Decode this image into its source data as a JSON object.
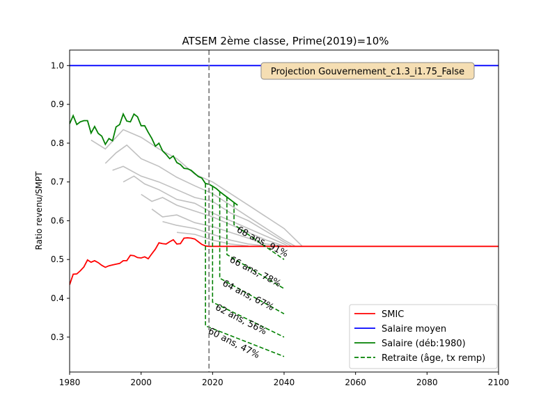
{
  "chart_data": {
    "type": "line",
    "title": "ATSEM 2ème classe, Prime(2019)=10%",
    "xlabel": "",
    "ylabel": "Ratio revenu/SMPT",
    "xlim": [
      1980,
      2100
    ],
    "ylim": [
      0.21,
      1.04
    ],
    "xticks": [
      1980,
      2000,
      2020,
      2040,
      2060,
      2080,
      2100
    ],
    "yticks": [
      0.3,
      0.4,
      0.5,
      0.6,
      0.7,
      0.8,
      0.9,
      1.0
    ],
    "grid": false,
    "legend_position": "bottom-right",
    "annotation_box": "Projection Gouvernement_c1.3_i1.75_False",
    "vline": {
      "x": 2019,
      "color": "#808080",
      "style": "dashed"
    },
    "series": [
      {
        "name": "SMIC",
        "color": "#ff0000",
        "style": "solid",
        "x": [
          1980,
          1981,
          1982,
          1983,
          1984,
          1985,
          1986,
          1987,
          1988,
          1989,
          1990,
          1991,
          1992,
          1993,
          1994,
          1995,
          1996,
          1997,
          1998,
          1999,
          2000,
          2001,
          2002,
          2003,
          2004,
          2005,
          2006,
          2007,
          2008,
          2009,
          2010,
          2011,
          2012,
          2013,
          2014,
          2015,
          2016,
          2017,
          2018,
          2019,
          2020,
          2030,
          2040,
          2060,
          2080,
          2100
        ],
        "y": [
          0.435,
          0.462,
          0.463,
          0.471,
          0.481,
          0.499,
          0.493,
          0.497,
          0.492,
          0.485,
          0.48,
          0.484,
          0.486,
          0.488,
          0.49,
          0.497,
          0.497,
          0.511,
          0.51,
          0.505,
          0.504,
          0.507,
          0.502,
          0.515,
          0.527,
          0.543,
          0.541,
          0.54,
          0.546,
          0.551,
          0.54,
          0.541,
          0.555,
          0.556,
          0.555,
          0.553,
          0.546,
          0.539,
          0.535,
          0.534,
          0.534,
          0.534,
          0.534,
          0.534,
          0.534,
          0.534
        ]
      },
      {
        "name": "Salaire moyen",
        "color": "#0000ff",
        "style": "solid",
        "x": [
          1980,
          2100
        ],
        "y": [
          1.0,
          1.0
        ]
      },
      {
        "name": "Salaire (déb:1980)",
        "color": "#008000",
        "style": "solid",
        "x": [
          1980,
          1981,
          1982,
          1983,
          1984,
          1985,
          1986,
          1987,
          1988,
          1989,
          1990,
          1991,
          1992,
          1993,
          1994,
          1995,
          1996,
          1997,
          1998,
          1999,
          2000,
          2001,
          2002,
          2003,
          2004,
          2005,
          2006,
          2007,
          2008,
          2009,
          2010,
          2011,
          2012,
          2013,
          2014,
          2015,
          2016,
          2017,
          2018,
          2019,
          2020,
          2021,
          2022,
          2023,
          2024,
          2025,
          2026,
          2027
        ],
        "y": [
          0.85,
          0.871,
          0.848,
          0.855,
          0.858,
          0.858,
          0.826,
          0.843,
          0.825,
          0.818,
          0.797,
          0.812,
          0.806,
          0.842,
          0.848,
          0.875,
          0.857,
          0.855,
          0.875,
          0.868,
          0.845,
          0.845,
          0.828,
          0.812,
          0.792,
          0.8,
          0.78,
          0.771,
          0.76,
          0.767,
          0.75,
          0.745,
          0.735,
          0.734,
          0.73,
          0.722,
          0.714,
          0.71,
          0.696,
          0.694,
          0.689,
          0.683,
          0.675,
          0.668,
          0.661,
          0.654,
          0.647,
          0.64
        ]
      },
      {
        "name": "",
        "color": "#c0c0c0",
        "style": "solid",
        "x": [
          1986,
          1990,
          1995,
          2000,
          2005,
          2010,
          2015,
          2020,
          2030,
          2040,
          2045
        ],
        "y": [
          0.808,
          0.785,
          0.835,
          0.815,
          0.785,
          0.76,
          0.72,
          0.7,
          0.64,
          0.58,
          0.535
        ]
      },
      {
        "name": "",
        "color": "#c0c0c0",
        "style": "solid",
        "x": [
          1990,
          1993,
          1996,
          2000,
          2005,
          2010,
          2015,
          2020,
          2025,
          2030,
          2040,
          2043
        ],
        "y": [
          0.748,
          0.775,
          0.795,
          0.76,
          0.74,
          0.712,
          0.69,
          0.67,
          0.64,
          0.61,
          0.55,
          0.535
        ]
      },
      {
        "name": "",
        "color": "#c0c0c0",
        "style": "solid",
        "x": [
          1992,
          1995,
          2000,
          2005,
          2010,
          2015,
          2020,
          2025,
          2030,
          2040,
          2042
        ],
        "y": [
          0.73,
          0.74,
          0.715,
          0.7,
          0.68,
          0.66,
          0.65,
          0.62,
          0.6,
          0.545,
          0.535
        ]
      },
      {
        "name": "",
        "color": "#c0c0c0",
        "style": "solid",
        "x": [
          1995,
          1998,
          2001,
          2005,
          2010,
          2015,
          2020,
          2025,
          2030,
          2040,
          2041
        ],
        "y": [
          0.7,
          0.715,
          0.695,
          0.68,
          0.655,
          0.645,
          0.62,
          0.6,
          0.58,
          0.54,
          0.535
        ]
      },
      {
        "name": "",
        "color": "#c0c0c0",
        "style": "solid",
        "x": [
          2000,
          2003,
          2006,
          2010,
          2015,
          2020,
          2025,
          2030,
          2035,
          2040
        ],
        "y": [
          0.668,
          0.65,
          0.66,
          0.64,
          0.625,
          0.61,
          0.59,
          0.57,
          0.55,
          0.535
        ]
      },
      {
        "name": "",
        "color": "#c0c0c0",
        "style": "solid",
        "x": [
          2003,
          2006,
          2010,
          2015,
          2020,
          2025,
          2030,
          2035,
          2040
        ],
        "y": [
          0.63,
          0.61,
          0.615,
          0.595,
          0.585,
          0.57,
          0.555,
          0.54,
          0.535
        ]
      },
      {
        "name": "",
        "color": "#c0c0c0",
        "style": "solid",
        "x": [
          2006,
          2010,
          2015,
          2020,
          2025,
          2030,
          2035,
          2040
        ],
        "y": [
          0.598,
          0.588,
          0.58,
          0.565,
          0.55,
          0.54,
          0.535,
          0.535
        ]
      },
      {
        "name": "",
        "color": "#c0c0c0",
        "style": "solid",
        "x": [
          2010,
          2015,
          2020,
          2025,
          2030
        ],
        "y": [
          0.57,
          0.565,
          0.55,
          0.54,
          0.535
        ]
      },
      {
        "name": "Retraite (âge, tx remp)",
        "color": "#008000",
        "style": "dashed",
        "x": [
          2018,
          2018,
          2040
        ],
        "y": [
          0.696,
          0.329,
          0.25
        ]
      },
      {
        "name": "",
        "color": "#008000",
        "style": "dashed",
        "x": [
          2020,
          2020,
          2040
        ],
        "y": [
          0.689,
          0.39,
          0.3
        ]
      },
      {
        "name": "",
        "color": "#008000",
        "style": "dashed",
        "x": [
          2022,
          2022,
          2040
        ],
        "y": [
          0.675,
          0.452,
          0.36
        ]
      },
      {
        "name": "",
        "color": "#008000",
        "style": "dashed",
        "x": [
          2024,
          2024,
          2040
        ],
        "y": [
          0.661,
          0.513,
          0.425
        ]
      },
      {
        "name": "",
        "color": "#008000",
        "style": "dashed",
        "x": [
          2026,
          2026,
          2040
        ],
        "y": [
          0.647,
          0.59,
          0.5
        ]
      }
    ],
    "annotations": [
      {
        "text": "60 ans, 47%",
        "x": 2018,
        "y": 0.329
      },
      {
        "text": "62 ans, 56%",
        "x": 2020,
        "y": 0.39
      },
      {
        "text": "64 ans, 67%",
        "x": 2022,
        "y": 0.452
      },
      {
        "text": "66 ans, 78%",
        "x": 2024,
        "y": 0.513
      },
      {
        "text": "68 ans, 91%",
        "x": 2026,
        "y": 0.59
      }
    ],
    "legend": [
      {
        "label": "SMIC",
        "color": "#ff0000",
        "style": "solid"
      },
      {
        "label": "Salaire moyen",
        "color": "#0000ff",
        "style": "solid"
      },
      {
        "label": "Salaire (déb:1980)",
        "color": "#008000",
        "style": "solid"
      },
      {
        "label": "Retraite (âge, tx remp)",
        "color": "#008000",
        "style": "dashed"
      }
    ]
  }
}
